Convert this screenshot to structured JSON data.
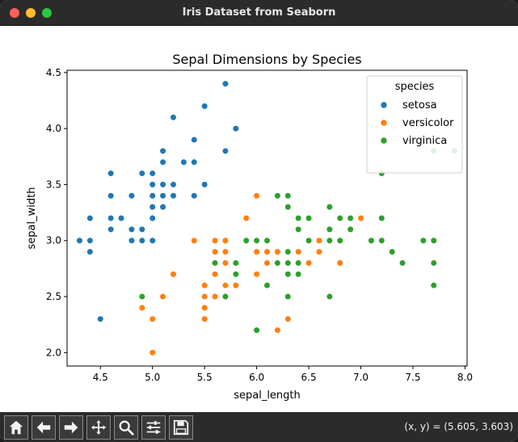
{
  "window": {
    "title": "Iris Dataset from Seaborn"
  },
  "toolbar": {
    "buttons": [
      {
        "name": "home-icon"
      },
      {
        "name": "back-arrow-icon"
      },
      {
        "name": "forward-arrow-icon"
      },
      {
        "name": "pan-icon"
      },
      {
        "name": "zoom-icon"
      },
      {
        "name": "configure-subplots-icon"
      },
      {
        "name": "save-icon"
      }
    ],
    "coordinates": "(x, y) = (5.605, 3.603)"
  },
  "chart_data": {
    "type": "scatter",
    "title": "Sepal Dimensions by Species",
    "xlabel": "sepal_length",
    "ylabel": "sepal_width",
    "xlim": [
      4.18,
      8.02
    ],
    "ylim": [
      1.88,
      4.52
    ],
    "xticks": [
      "4.5",
      "5.0",
      "5.5",
      "6.0",
      "6.5",
      "7.0",
      "7.5",
      "8.0"
    ],
    "xtick_values": [
      4.5,
      5.0,
      5.5,
      6.0,
      6.5,
      7.0,
      7.5,
      8.0
    ],
    "yticks": [
      "2.0",
      "2.5",
      "3.0",
      "3.5",
      "4.0",
      "4.5"
    ],
    "ytick_values": [
      2.0,
      2.5,
      3.0,
      3.5,
      4.0,
      4.5
    ],
    "grid": false,
    "legend": {
      "title": "species",
      "placement": "top-right"
    },
    "series": [
      {
        "name": "setosa",
        "color": "#1f77b4",
        "points": [
          [
            5.1,
            3.5
          ],
          [
            4.9,
            3.0
          ],
          [
            4.7,
            3.2
          ],
          [
            4.6,
            3.1
          ],
          [
            5.0,
            3.6
          ],
          [
            5.4,
            3.9
          ],
          [
            4.6,
            3.4
          ],
          [
            5.0,
            3.4
          ],
          [
            4.4,
            2.9
          ],
          [
            4.9,
            3.1
          ],
          [
            5.4,
            3.7
          ],
          [
            4.8,
            3.4
          ],
          [
            4.8,
            3.0
          ],
          [
            4.3,
            3.0
          ],
          [
            5.8,
            4.0
          ],
          [
            5.7,
            4.4
          ],
          [
            5.4,
            3.9
          ],
          [
            5.1,
            3.5
          ],
          [
            5.7,
            3.8
          ],
          [
            5.1,
            3.8
          ],
          [
            5.4,
            3.4
          ],
          [
            5.1,
            3.7
          ],
          [
            4.6,
            3.6
          ],
          [
            5.1,
            3.3
          ],
          [
            4.8,
            3.4
          ],
          [
            5.0,
            3.0
          ],
          [
            5.0,
            3.4
          ],
          [
            5.2,
            3.5
          ],
          [
            5.2,
            3.4
          ],
          [
            4.7,
            3.2
          ],
          [
            4.8,
            3.1
          ],
          [
            5.4,
            3.4
          ],
          [
            5.2,
            4.1
          ],
          [
            5.5,
            4.2
          ],
          [
            4.9,
            3.1
          ],
          [
            5.0,
            3.2
          ],
          [
            5.5,
            3.5
          ],
          [
            4.9,
            3.6
          ],
          [
            4.4,
            3.0
          ],
          [
            5.1,
            3.4
          ],
          [
            5.0,
            3.5
          ],
          [
            4.5,
            2.3
          ],
          [
            4.4,
            3.2
          ],
          [
            5.0,
            3.5
          ],
          [
            5.1,
            3.8
          ],
          [
            4.8,
            3.0
          ],
          [
            5.1,
            3.8
          ],
          [
            4.6,
            3.2
          ],
          [
            5.3,
            3.7
          ],
          [
            5.0,
            3.3
          ]
        ]
      },
      {
        "name": "versicolor",
        "color": "#ff7f0e",
        "points": [
          [
            7.0,
            3.2
          ],
          [
            6.4,
            3.2
          ],
          [
            6.9,
            3.1
          ],
          [
            5.5,
            2.3
          ],
          [
            6.5,
            2.8
          ],
          [
            5.7,
            2.8
          ],
          [
            6.3,
            3.3
          ],
          [
            4.9,
            2.4
          ],
          [
            6.6,
            2.9
          ],
          [
            5.2,
            2.7
          ],
          [
            5.0,
            2.0
          ],
          [
            5.9,
            3.0
          ],
          [
            6.0,
            2.2
          ],
          [
            6.1,
            2.9
          ],
          [
            5.6,
            2.9
          ],
          [
            6.7,
            3.1
          ],
          [
            5.6,
            3.0
          ],
          [
            5.8,
            2.7
          ],
          [
            6.2,
            2.2
          ],
          [
            5.6,
            2.5
          ],
          [
            5.9,
            3.2
          ],
          [
            6.1,
            2.8
          ],
          [
            6.3,
            2.5
          ],
          [
            6.1,
            2.8
          ],
          [
            6.4,
            2.9
          ],
          [
            6.6,
            3.0
          ],
          [
            6.8,
            2.8
          ],
          [
            6.7,
            3.0
          ],
          [
            6.0,
            2.9
          ],
          [
            5.7,
            2.6
          ],
          [
            5.5,
            2.4
          ],
          [
            5.5,
            2.4
          ],
          [
            5.8,
            2.7
          ],
          [
            6.0,
            2.7
          ],
          [
            5.4,
            3.0
          ],
          [
            6.0,
            3.4
          ],
          [
            6.7,
            3.1
          ],
          [
            6.3,
            2.3
          ],
          [
            5.6,
            3.0
          ],
          [
            5.5,
            2.5
          ],
          [
            5.5,
            2.6
          ],
          [
            6.1,
            3.0
          ],
          [
            5.8,
            2.6
          ],
          [
            5.0,
            2.3
          ],
          [
            5.6,
            2.7
          ],
          [
            5.7,
            3.0
          ],
          [
            5.7,
            2.9
          ],
          [
            6.2,
            2.9
          ],
          [
            5.1,
            2.5
          ],
          [
            5.7,
            2.8
          ]
        ]
      },
      {
        "name": "virginica",
        "color": "#2ca02c",
        "points": [
          [
            6.3,
            3.3
          ],
          [
            5.8,
            2.7
          ],
          [
            7.1,
            3.0
          ],
          [
            6.3,
            2.9
          ],
          [
            6.5,
            3.0
          ],
          [
            7.6,
            3.0
          ],
          [
            4.9,
            2.5
          ],
          [
            7.3,
            2.9
          ],
          [
            6.7,
            2.5
          ],
          [
            7.2,
            3.6
          ],
          [
            6.5,
            3.2
          ],
          [
            6.4,
            2.7
          ],
          [
            6.8,
            3.0
          ],
          [
            5.7,
            2.5
          ],
          [
            5.8,
            2.8
          ],
          [
            6.4,
            3.2
          ],
          [
            6.5,
            3.0
          ],
          [
            7.7,
            3.8
          ],
          [
            7.7,
            2.6
          ],
          [
            6.0,
            2.2
          ],
          [
            6.9,
            3.2
          ],
          [
            5.6,
            2.8
          ],
          [
            7.7,
            2.8
          ],
          [
            6.3,
            2.7
          ],
          [
            6.7,
            3.3
          ],
          [
            7.2,
            3.2
          ],
          [
            6.2,
            2.8
          ],
          [
            6.1,
            3.0
          ],
          [
            6.4,
            2.8
          ],
          [
            7.2,
            3.0
          ],
          [
            7.4,
            2.8
          ],
          [
            7.9,
            3.8
          ],
          [
            6.4,
            2.8
          ],
          [
            6.3,
            2.8
          ],
          [
            6.1,
            2.6
          ],
          [
            7.7,
            3.0
          ],
          [
            6.3,
            3.4
          ],
          [
            6.4,
            3.1
          ],
          [
            6.0,
            3.0
          ],
          [
            6.9,
            3.1
          ],
          [
            6.7,
            3.1
          ],
          [
            6.9,
            3.1
          ],
          [
            5.8,
            2.7
          ],
          [
            6.8,
            3.2
          ],
          [
            6.7,
            3.3
          ],
          [
            6.7,
            3.0
          ],
          [
            6.3,
            2.5
          ],
          [
            6.5,
            3.0
          ],
          [
            6.2,
            3.4
          ],
          [
            5.9,
            3.0
          ]
        ]
      }
    ]
  }
}
